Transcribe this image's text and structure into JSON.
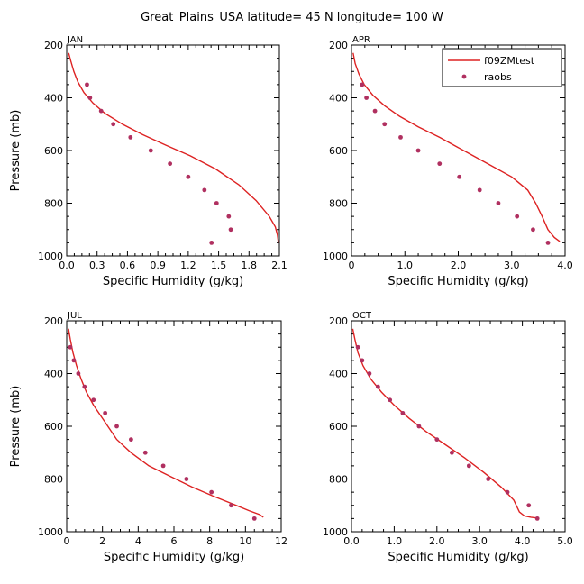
{
  "figure": {
    "title": "Great_Plains_USA  latitude= 45 N longitude= 100 W",
    "colors": {
      "model": "#dd2222",
      "obs": "#b03060",
      "axis": "#000000"
    },
    "legend": {
      "placement": "top-right of APR panel",
      "entries": [
        {
          "label": "f09ZMtest",
          "style": "line"
        },
        {
          "label": "raobs",
          "style": "marker"
        }
      ]
    }
  },
  "chart_data": [
    {
      "type": "line",
      "panel": "JAN",
      "xlabel": "Specific Humidity (g/kg)",
      "ylabel": "Pressure (mb)",
      "xlim": [
        0,
        2.1
      ],
      "ylim": [
        1000,
        200
      ],
      "xticks": [
        "0.0",
        "0.3",
        "0.6",
        "0.9",
        "1.2",
        "1.5",
        "1.8",
        "2.1"
      ],
      "yticks": [
        "200",
        "400",
        "600",
        "800",
        "1000"
      ],
      "series": [
        {
          "name": "f09ZMtest",
          "style": "line",
          "x": [
            0.02,
            0.04,
            0.07,
            0.11,
            0.17,
            0.26,
            0.38,
            0.55,
            0.75,
            0.98,
            1.22,
            1.47,
            1.7,
            1.87,
            2.0,
            2.06,
            2.08,
            2.09
          ],
          "y": [
            230,
            260,
            300,
            340,
            380,
            420,
            460,
            500,
            540,
            580,
            620,
            670,
            730,
            790,
            850,
            890,
            920,
            950
          ]
        },
        {
          "name": "raobs",
          "style": "marker",
          "x": [
            0.2,
            0.23,
            0.34,
            0.46,
            0.63,
            0.83,
            1.02,
            1.2,
            1.36,
            1.48,
            1.6,
            1.62,
            1.43
          ],
          "y": [
            350,
            400,
            450,
            500,
            550,
            600,
            650,
            700,
            750,
            800,
            850,
            900,
            950
          ]
        }
      ]
    },
    {
      "type": "line",
      "panel": "APR",
      "xlabel": "Specific Humidity (g/kg)",
      "ylabel": "",
      "xlim": [
        0,
        4
      ],
      "ylim": [
        1000,
        200
      ],
      "xticks": [
        "0",
        "1.0",
        "2.0",
        "3.0",
        "4.0"
      ],
      "yticks": [
        "200",
        "400",
        "600",
        "800",
        "1000"
      ],
      "series": [
        {
          "name": "f09ZMtest",
          "style": "line",
          "x": [
            0.03,
            0.07,
            0.14,
            0.24,
            0.4,
            0.62,
            0.9,
            1.25,
            1.65,
            2.1,
            2.55,
            3.0,
            3.3,
            3.45,
            3.57,
            3.68,
            3.8,
            3.9
          ],
          "y": [
            230,
            270,
            310,
            350,
            390,
            430,
            470,
            510,
            550,
            600,
            650,
            700,
            750,
            800,
            850,
            900,
            930,
            945
          ]
        },
        {
          "name": "raobs",
          "style": "marker",
          "x": [
            0.2,
            0.28,
            0.44,
            0.62,
            0.92,
            1.25,
            1.65,
            2.02,
            2.4,
            2.75,
            3.1,
            3.4,
            3.68
          ],
          "y": [
            350,
            400,
            450,
            500,
            550,
            600,
            650,
            700,
            750,
            800,
            850,
            900,
            950
          ]
        }
      ]
    },
    {
      "type": "line",
      "panel": "JUL",
      "xlabel": "Specific Humidity (g/kg)",
      "ylabel": "Pressure (mb)",
      "xlim": [
        0,
        12
      ],
      "ylim": [
        1000,
        200
      ],
      "xticks": [
        "0",
        "2",
        "4",
        "6",
        "8",
        "10",
        "12"
      ],
      "yticks": [
        "200",
        "400",
        "600",
        "800",
        "1000"
      ],
      "series": [
        {
          "name": "f09ZMtest",
          "style": "line",
          "x": [
            0.1,
            0.2,
            0.35,
            0.55,
            0.8,
            1.1,
            1.5,
            2.1,
            2.8,
            3.6,
            4.6,
            5.8,
            7.0,
            8.2,
            9.3,
            10.2,
            10.8,
            11.0
          ],
          "y": [
            230,
            270,
            320,
            370,
            420,
            470,
            520,
            580,
            650,
            700,
            750,
            790,
            830,
            865,
            895,
            920,
            935,
            945
          ]
        },
        {
          "name": "raobs",
          "style": "marker",
          "x": [
            0.2,
            0.4,
            0.65,
            1.0,
            1.5,
            2.15,
            2.8,
            3.6,
            4.4,
            5.4,
            6.7,
            8.1,
            9.2,
            10.5
          ],
          "y": [
            300,
            350,
            400,
            450,
            500,
            550,
            600,
            650,
            700,
            750,
            800,
            850,
            900,
            950
          ]
        }
      ]
    },
    {
      "type": "line",
      "panel": "OCT",
      "xlabel": "Specific Humidity (g/kg)",
      "ylabel": "",
      "xlim": [
        0,
        5
      ],
      "ylim": [
        1000,
        200
      ],
      "xticks": [
        "0.0",
        "1.0",
        "2.0",
        "3.0",
        "4.0",
        "5.0"
      ],
      "yticks": [
        "200",
        "400",
        "600",
        "800",
        "1000"
      ],
      "series": [
        {
          "name": "f09ZMtest",
          "style": "line",
          "x": [
            0.03,
            0.08,
            0.15,
            0.27,
            0.45,
            0.7,
            1.0,
            1.35,
            1.75,
            2.2,
            2.65,
            3.1,
            3.5,
            3.8,
            3.93,
            4.05,
            4.2,
            4.35
          ],
          "y": [
            230,
            270,
            320,
            370,
            420,
            470,
            520,
            570,
            620,
            670,
            720,
            775,
            830,
            880,
            925,
            940,
            945,
            948
          ]
        },
        {
          "name": "raobs",
          "style": "marker",
          "x": [
            0.15,
            0.25,
            0.42,
            0.62,
            0.9,
            1.2,
            1.58,
            2.0,
            2.35,
            2.75,
            3.2,
            3.65,
            4.15,
            4.35
          ],
          "y": [
            300,
            350,
            400,
            450,
            500,
            550,
            600,
            650,
            700,
            750,
            800,
            850,
            900,
            950
          ]
        }
      ]
    }
  ]
}
